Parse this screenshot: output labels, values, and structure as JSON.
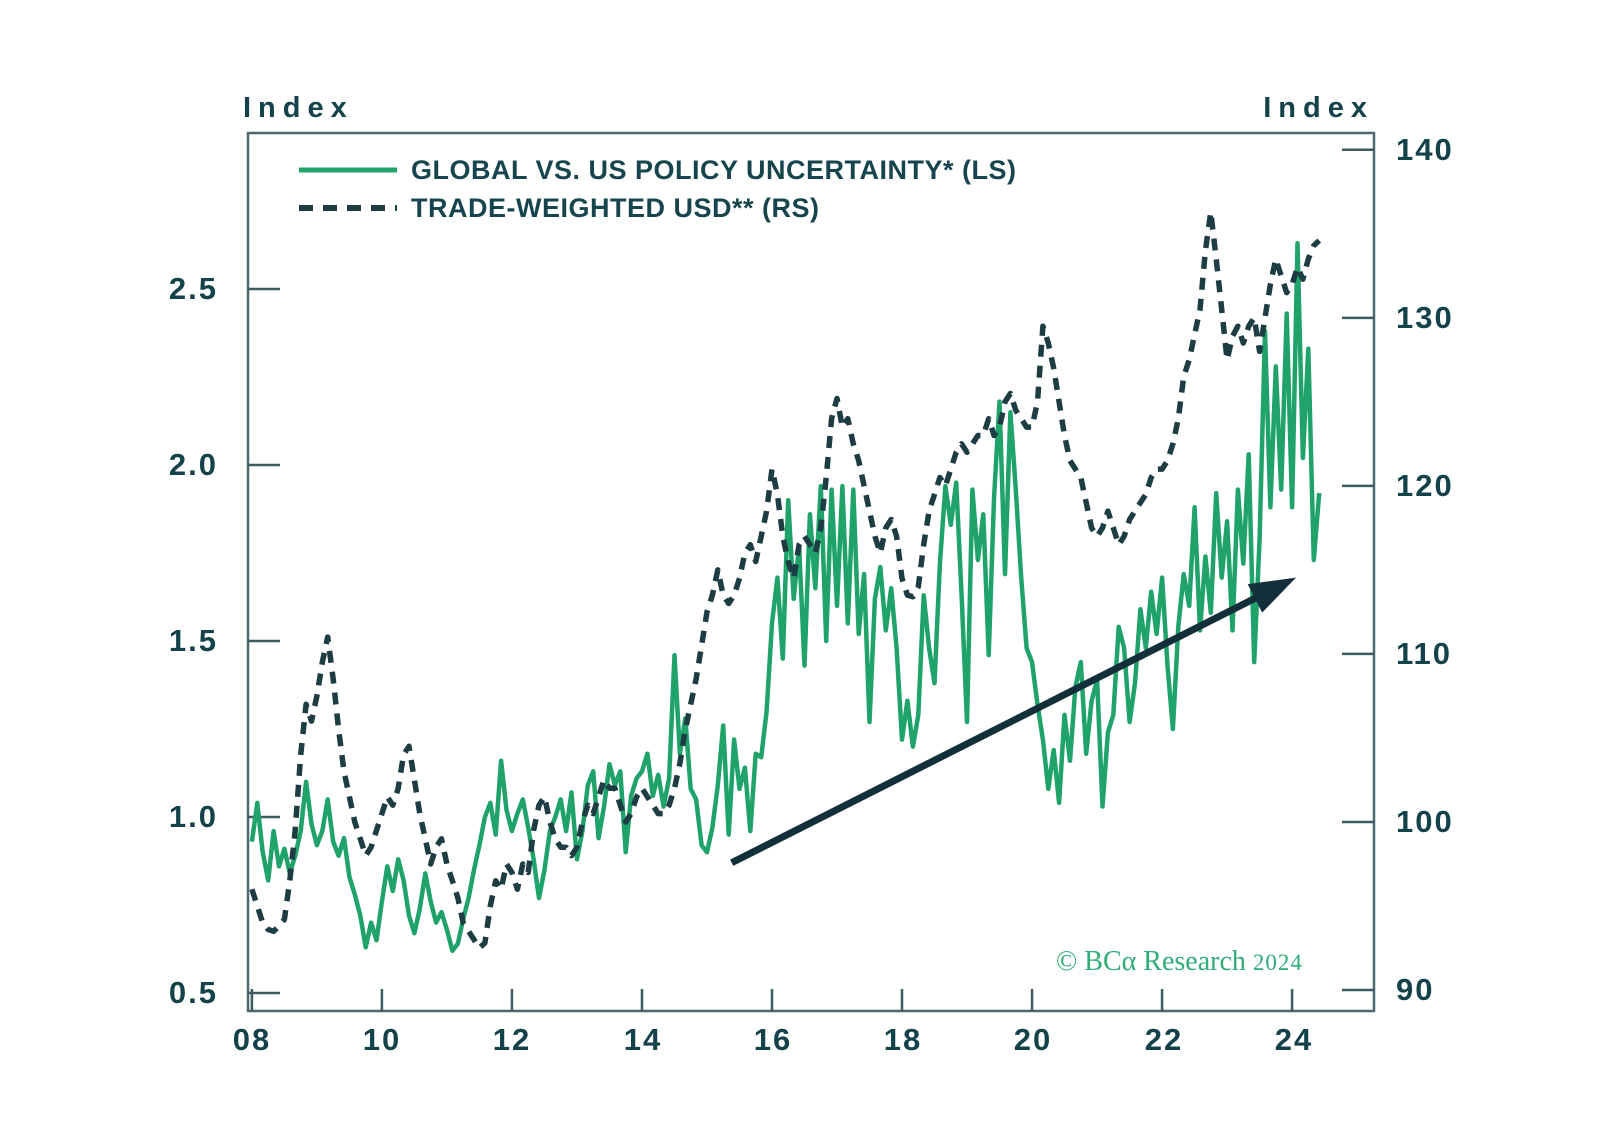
{
  "page": {
    "background": "#ffffff",
    "frame_color": "#4d686e",
    "text_color": "#14424a"
  },
  "axes": {
    "left": {
      "title": "Index",
      "tick_labels": [
        "2.5",
        "2.0",
        "1.5",
        "1.0",
        "0.5"
      ]
    },
    "right": {
      "title": "Index",
      "tick_labels": [
        "140",
        "130",
        "120",
        "110",
        "100",
        "90"
      ]
    },
    "x": {
      "tick_labels": [
        "08",
        "10",
        "12",
        "14",
        "16",
        "18",
        "20",
        "22",
        "24"
      ]
    }
  },
  "legend": {
    "items": [
      {
        "label": "GLOBAL VS. US POLICY UNCERTAINTY* (LS)",
        "style": "solid",
        "color": "#1fa36b"
      },
      {
        "label": "TRADE-WEIGHTED USD** (RS)",
        "style": "dashed",
        "color": "#1d3c44"
      }
    ]
  },
  "copyright": {
    "text": "© BCα Research",
    "year": "2024",
    "color": "#2fad78"
  },
  "chart_data": {
    "type": "line",
    "title": "",
    "xlabel": "",
    "ylabel_left": "Index",
    "ylabel_right": "Index",
    "x_start": 2008.0,
    "x_step": 0.0833333,
    "xlim": [
      2007.94,
      2025.26
    ],
    "ylim_left": [
      0.449,
      2.943
    ],
    "ylim_right": [
      88.75,
      141.0
    ],
    "left_axis_ticks": [
      2.5,
      2.0,
      1.5,
      1.0,
      0.5
    ],
    "right_axis_ticks": [
      140,
      130,
      120,
      110,
      100,
      90
    ],
    "x_axis_ticks": [
      2008,
      2010,
      2012,
      2014,
      2016,
      2018,
      2020,
      2022,
      2024
    ],
    "grid": false,
    "legend_position": "top-left-inside",
    "series": [
      {
        "name": "GLOBAL VS. US POLICY UNCERTAINTY* (LS)",
        "axis": "left",
        "style": "solid",
        "color": "#1fa36b",
        "values": [
          0.93,
          1.04,
          0.9,
          0.82,
          0.96,
          0.86,
          0.91,
          0.84,
          0.89,
          0.96,
          1.1,
          0.98,
          0.92,
          0.96,
          1.05,
          0.93,
          0.89,
          0.94,
          0.83,
          0.78,
          0.72,
          0.63,
          0.7,
          0.65,
          0.76,
          0.86,
          0.79,
          0.88,
          0.82,
          0.72,
          0.67,
          0.74,
          0.84,
          0.76,
          0.7,
          0.73,
          0.68,
          0.62,
          0.64,
          0.71,
          0.77,
          0.85,
          0.92,
          1.0,
          1.04,
          0.95,
          1.16,
          1.02,
          0.96,
          1.01,
          1.05,
          0.97,
          0.88,
          0.77,
          0.85,
          0.96,
          1.0,
          1.05,
          0.96,
          1.07,
          0.88,
          0.96,
          1.09,
          1.13,
          0.94,
          1.03,
          1.15,
          1.09,
          1.13,
          0.9,
          1.06,
          1.11,
          1.13,
          1.18,
          1.06,
          1.12,
          1.03,
          1.11,
          1.46,
          1.18,
          1.28,
          1.08,
          1.05,
          0.92,
          0.9,
          0.97,
          1.09,
          1.26,
          0.95,
          1.22,
          1.08,
          1.14,
          0.96,
          1.18,
          1.17,
          1.3,
          1.55,
          1.68,
          1.45,
          1.9,
          1.62,
          1.77,
          1.43,
          1.86,
          1.65,
          1.94,
          1.5,
          1.93,
          1.6,
          1.94,
          1.55,
          1.93,
          1.52,
          1.69,
          1.27,
          1.62,
          1.71,
          1.53,
          1.65,
          1.48,
          1.22,
          1.33,
          1.2,
          1.29,
          1.63,
          1.48,
          1.38,
          1.72,
          1.94,
          1.83,
          1.95,
          1.63,
          1.27,
          1.93,
          1.73,
          1.86,
          1.46,
          1.91,
          2.18,
          1.69,
          2.15,
          1.93,
          1.68,
          1.48,
          1.44,
          1.32,
          1.22,
          1.08,
          1.19,
          1.04,
          1.29,
          1.16,
          1.37,
          1.44,
          1.18,
          1.33,
          1.39,
          1.03,
          1.24,
          1.29,
          1.54,
          1.48,
          1.27,
          1.38,
          1.59,
          1.48,
          1.64,
          1.52,
          1.68,
          1.43,
          1.25,
          1.54,
          1.69,
          1.6,
          1.88,
          1.53,
          1.74,
          1.58,
          1.92,
          1.68,
          1.84,
          1.53,
          1.93,
          1.72,
          2.03,
          1.44,
          1.79,
          2.38,
          1.88,
          2.28,
          1.93,
          2.43,
          1.88,
          2.63,
          2.02,
          2.33,
          1.73,
          1.92
        ]
      },
      {
        "name": "TRADE-WEIGHTED USD** (RS)",
        "axis": "right",
        "style": "dashed",
        "color": "#1d3c44",
        "values": [
          96.0,
          95.0,
          94.0,
          93.6,
          93.5,
          93.8,
          94.2,
          96.5,
          99.5,
          104.0,
          107.0,
          106.0,
          107.5,
          109.5,
          111.0,
          108.5,
          105.5,
          103.0,
          101.5,
          100.0,
          99.0,
          98.0,
          98.5,
          99.5,
          100.5,
          101.5,
          101.0,
          102.0,
          104.0,
          104.5,
          102.5,
          100.5,
          99.0,
          97.5,
          98.5,
          99.0,
          97.5,
          96.5,
          95.5,
          94.0,
          93.5,
          93.0,
          92.5,
          92.8,
          95.0,
          96.5,
          96.0,
          97.5,
          97.0,
          96.0,
          97.5,
          97.0,
          99.5,
          101.0,
          101.5,
          100.0,
          99.0,
          98.5,
          98.5,
          98.0,
          98.5,
          100.0,
          101.0,
          100.5,
          101.5,
          102.5,
          102.0,
          102.0,
          101.0,
          100.0,
          100.5,
          101.5,
          102.0,
          101.5,
          101.0,
          100.5,
          100.5,
          101.0,
          102.0,
          103.5,
          105.5,
          107.0,
          108.5,
          110.5,
          112.5,
          113.5,
          115.0,
          113.5,
          113.0,
          113.5,
          114.5,
          116.0,
          116.5,
          115.5,
          117.0,
          118.5,
          121.0,
          119.5,
          117.0,
          115.5,
          114.5,
          116.5,
          117.0,
          116.5,
          116.0,
          117.5,
          120.5,
          124.0,
          125.2,
          123.5,
          124.0,
          122.5,
          121.5,
          120.0,
          118.5,
          117.0,
          116.0,
          117.5,
          118.0,
          117.0,
          114.5,
          113.5,
          113.4,
          114.0,
          116.5,
          118.5,
          119.5,
          120.5,
          120.0,
          121.0,
          122.0,
          122.5,
          122.0,
          122.5,
          123.0,
          123.0,
          124.0,
          123.0,
          123.5,
          125.0,
          125.5,
          124.5,
          124.0,
          123.5,
          123.5,
          125.0,
          129.5,
          128.5,
          127.0,
          125.0,
          123.0,
          121.5,
          121.0,
          120.5,
          119.0,
          117.5,
          117.0,
          117.5,
          118.5,
          117.5,
          116.5,
          117.0,
          118.0,
          118.5,
          119.0,
          119.5,
          120.5,
          121.0,
          121.0,
          121.5,
          122.5,
          124.0,
          126.5,
          127.5,
          129.0,
          130.5,
          134.0,
          136.3,
          133.5,
          130.5,
          127.5,
          128.9,
          129.5,
          128.5,
          129.5,
          130.0,
          128.0,
          130.0,
          132.0,
          133.5,
          132.5,
          131.5,
          132.0,
          133.0,
          132.3,
          133.5,
          134.3,
          134.6
        ]
      }
    ],
    "annotations": [
      {
        "type": "arrow",
        "axis": "left",
        "from": [
          2015.38,
          0.87
        ],
        "to": [
          2024.06,
          1.68
        ],
        "color": "#13303a"
      }
    ]
  }
}
